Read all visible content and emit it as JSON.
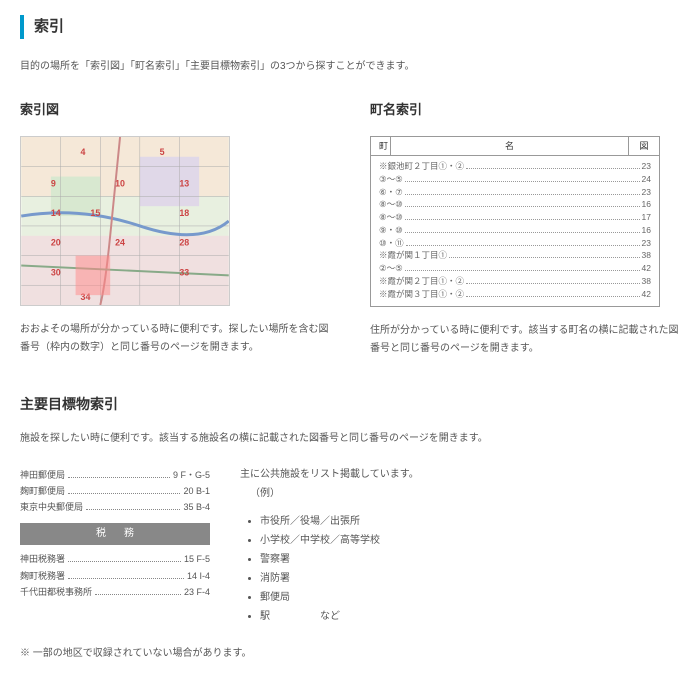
{
  "title": "索引",
  "intro": "目的の場所を「索引図」「町名索引」「主要目標物索引」の3つから探すことができます。",
  "indexMap": {
    "title": "索引図",
    "desc": "おおよその場所が分かっている時に便利です。探したい場所を含む図番号（枠内の数字）と同じ番号のページを開きます。"
  },
  "townIndex": {
    "title": "町名索引",
    "header": {
      "name": "名",
      "left": "町",
      "page": "図"
    },
    "rows": [
      {
        "label": "※銀池町２丁目①・②",
        "page": "23"
      },
      {
        "label": "③～⑤",
        "page": "24"
      },
      {
        "label": "⑥・⑦",
        "page": "23"
      },
      {
        "label": "⑧～⑩",
        "page": "16"
      },
      {
        "label": "⑧～⑩",
        "page": "17"
      },
      {
        "label": "⑨・⑩",
        "page": "16"
      },
      {
        "label": "⑩・⑪",
        "page": "23"
      },
      {
        "label": "※霞が関１丁目①",
        "page": "38"
      },
      {
        "label": "②～⑤",
        "page": "42"
      },
      {
        "label": "※霞が関２丁目①・②",
        "page": "38"
      },
      {
        "label": "※霞が関３丁目①・②",
        "page": "42"
      }
    ],
    "desc": "住所が分かっている時に便利です。該当する町名の横に記載された図番号と同じ番号のページを開きます。"
  },
  "facility": {
    "title": "主要目標物索引",
    "intro": "施設を探したい時に便利です。該当する施設名の横に記載された図番号と同じ番号のページを開きます。",
    "rows1": [
      {
        "label": "神田郵便局",
        "val": "9 F・G-5"
      },
      {
        "label": "麹町郵便局",
        "val": "20 B-1"
      },
      {
        "label": "東京中央郵便局",
        "val": "35 B-4"
      }
    ],
    "sectHead": "税務",
    "rows2": [
      {
        "label": "神田税務署",
        "val": "15 F-5"
      },
      {
        "label": "麹町税務署",
        "val": "14 I-4"
      },
      {
        "label": "千代田都税事務所",
        "val": "23 F-4"
      }
    ],
    "rightLead": "主に公共施設をリスト掲載しています。",
    "rightEx": "（例）",
    "list": [
      "市役所／役場／出張所",
      "小学校／中学校／高等学校",
      "警察署",
      "消防署",
      "郵便局",
      "駅　　　　　など"
    ]
  },
  "note": "※ 一部の地区で収録されていない場合があります。"
}
